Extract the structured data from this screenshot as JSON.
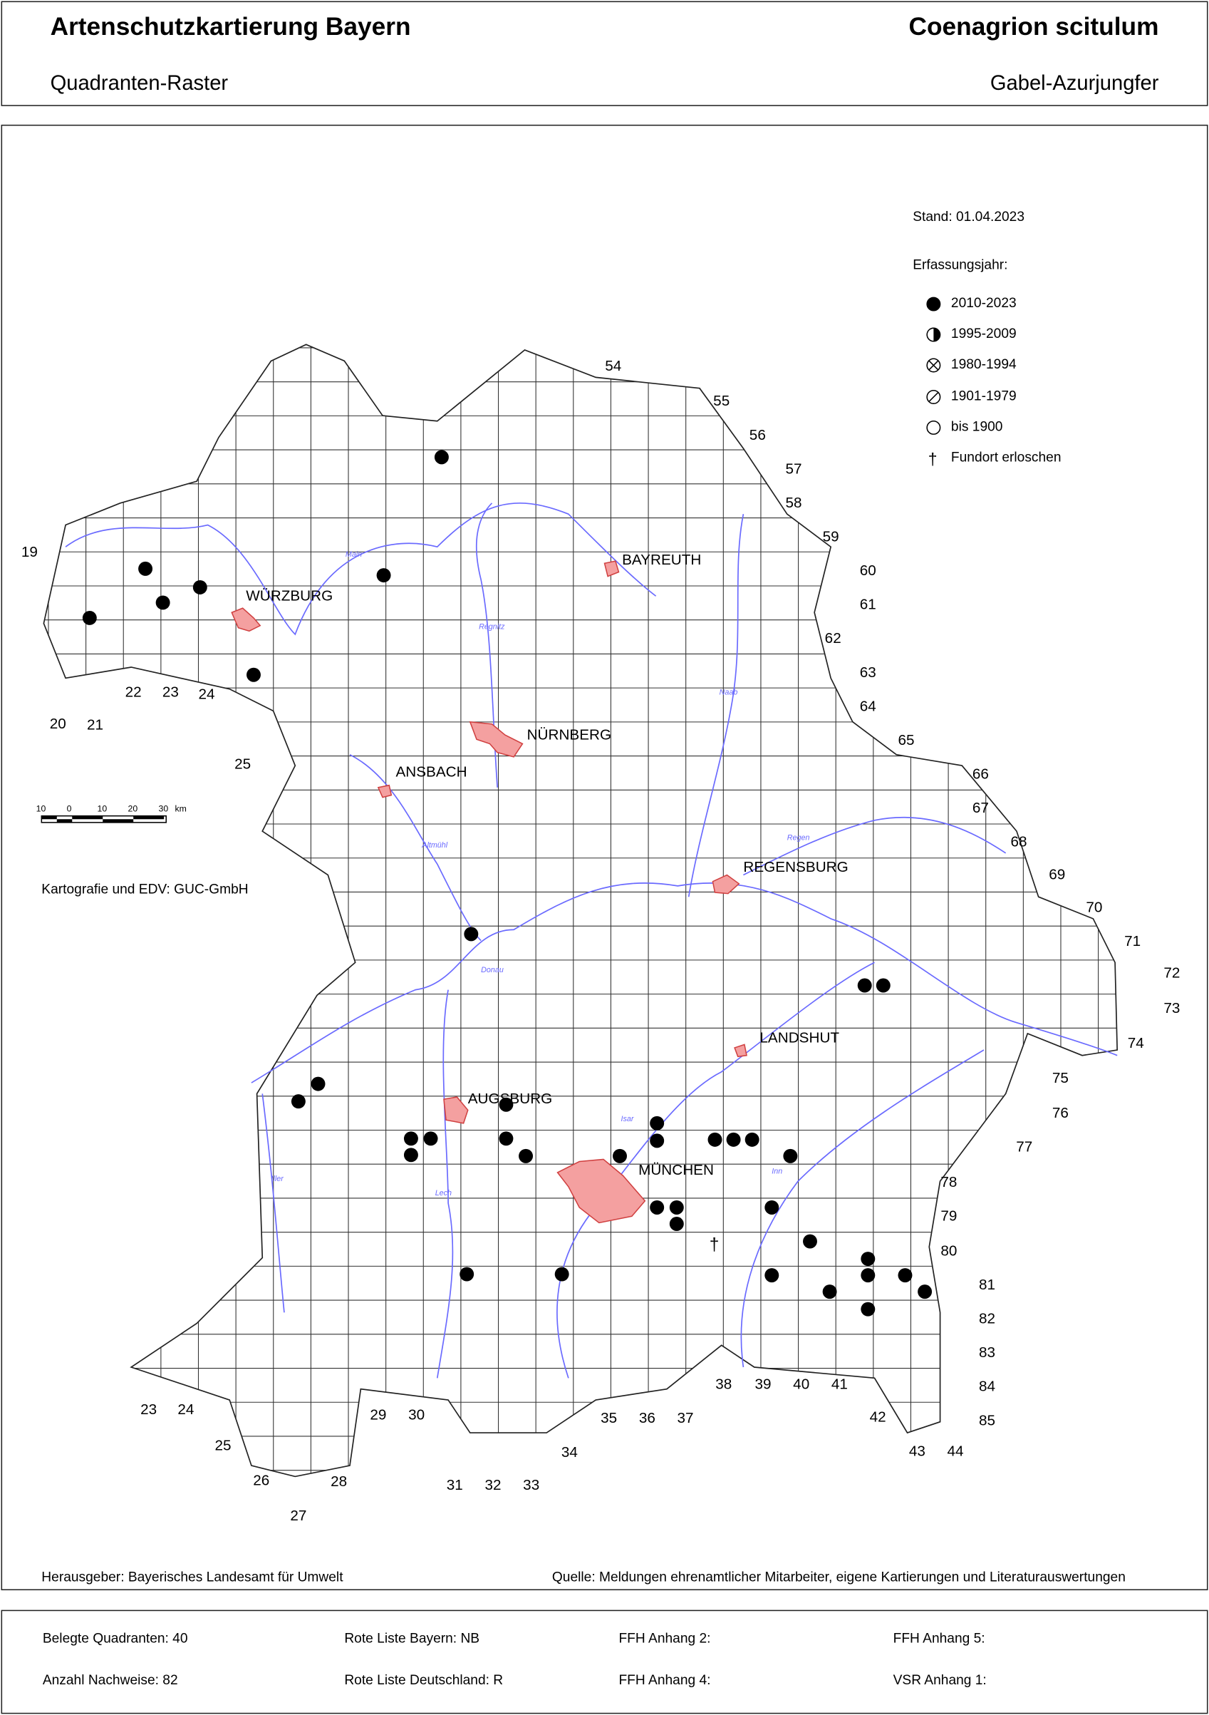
{
  "header": {
    "title": "Artenschutzkartierung Bayern",
    "subtitle": "Quadranten-Raster",
    "species_latin": "Coenagrion scitulum",
    "species_german": "Gabel-Azurjungfer"
  },
  "legend": {
    "stand": "Stand: 01.04.2023",
    "heading": "Erfassungsjahr:",
    "items": [
      {
        "symbol": "filled-circle-icon",
        "label": "2010-2023"
      },
      {
        "symbol": "half-circle-icon",
        "label": "1995-2009"
      },
      {
        "symbol": "crossed-circle-icon",
        "label": "1980-1994"
      },
      {
        "symbol": "slashed-circle-icon",
        "label": "1901-1979"
      },
      {
        "symbol": "empty-circle-icon",
        "label": "bis 1900"
      },
      {
        "symbol": "dagger-icon",
        "label": "Fundort erloschen"
      }
    ]
  },
  "scale_bar": {
    "ticks": [
      "10",
      "0",
      "10",
      "20",
      "30"
    ],
    "unit": "km"
  },
  "credits": "Kartografie und EDV: GUC-GmbH",
  "cities": [
    "WÜRZBURG",
    "BAYREUTH",
    "NÜRNBERG",
    "ANSBACH",
    "REGENSBURG",
    "LANDSHUT",
    "AUGSBURG",
    "MÜNCHEN"
  ],
  "rivers": [
    "Main",
    "Donau",
    "Regen",
    "Naab",
    "Altmühl",
    "Isar",
    "Inn",
    "Lech",
    "Regnitz",
    "Iller"
  ],
  "grid_labels": {
    "columns": [
      "19",
      "20",
      "21",
      "22",
      "23",
      "24",
      "25",
      "23",
      "24",
      "25",
      "26",
      "27",
      "28",
      "29",
      "30",
      "31",
      "32",
      "33",
      "34",
      "35",
      "36",
      "37",
      "38",
      "39",
      "40",
      "41",
      "42",
      "43",
      "44"
    ],
    "rows": [
      "54",
      "55",
      "56",
      "57",
      "58",
      "59",
      "60",
      "61",
      "62",
      "63",
      "64",
      "65",
      "66",
      "67",
      "68",
      "69",
      "70",
      "71",
      "72",
      "73",
      "74",
      "75",
      "76",
      "77",
      "78",
      "79",
      "80",
      "81",
      "82",
      "83",
      "84",
      "85"
    ]
  },
  "colors": {
    "record": "#000000",
    "river": "#6a6aff",
    "city_fill": "#f4a0a0",
    "city_stroke": "#d04040"
  },
  "footer": {
    "publisher": "Herausgeber: Bayerisches Landesamt für Umwelt",
    "source": "Quelle: Meldungen ehrenamtlicher Mitarbeiter, eigene Kartierungen und Literaturauswertungen",
    "stats": [
      "Belegte Quadranten: 40",
      "Rote Liste Bayern: NB",
      "FFH Anhang 2:",
      "FFH Anhang 5:",
      "Anzahl Nachweise: 82",
      "Rote Liste Deutschland: R",
      "FFH Anhang 4:",
      "VSR Anhang 1:"
    ]
  }
}
